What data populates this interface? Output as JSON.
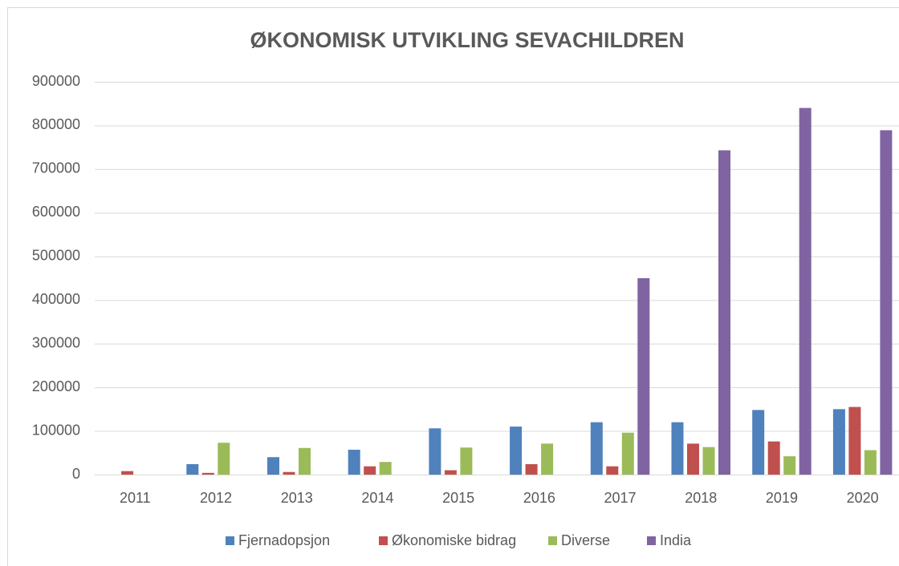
{
  "chart_data": {
    "type": "bar",
    "title": "ØKONOMISK UTVIKLING SEVACHILDREN",
    "categories": [
      "2011",
      "2012",
      "2013",
      "2014",
      "2015",
      "2016",
      "2017",
      "2018",
      "2019",
      "2020"
    ],
    "series": [
      {
        "name": "Fjernadopsjon",
        "color": "#4f81bd",
        "values": [
          0,
          24000,
          40000,
          57000,
          106000,
          110000,
          120000,
          120000,
          148000,
          150000
        ]
      },
      {
        "name": "Økonomiske bidrag",
        "color": "#c0504d",
        "values": [
          8000,
          4000,
          6000,
          19000,
          10000,
          24000,
          19000,
          71000,
          76000,
          155000
        ]
      },
      {
        "name": "Diverse",
        "color": "#9bbb59",
        "values": [
          0,
          73000,
          61000,
          29000,
          62000,
          71000,
          96000,
          63000,
          42000,
          56000
        ]
      },
      {
        "name": "India",
        "color": "#8064a2",
        "values": [
          0,
          0,
          0,
          0,
          0,
          0,
          450000,
          743000,
          840000,
          789000
        ]
      }
    ],
    "ylim": [
      0,
      900000
    ],
    "yticks": [
      0,
      100000,
      200000,
      300000,
      400000,
      500000,
      600000,
      700000,
      800000,
      900000
    ],
    "grid": true,
    "legend": "bottom"
  }
}
